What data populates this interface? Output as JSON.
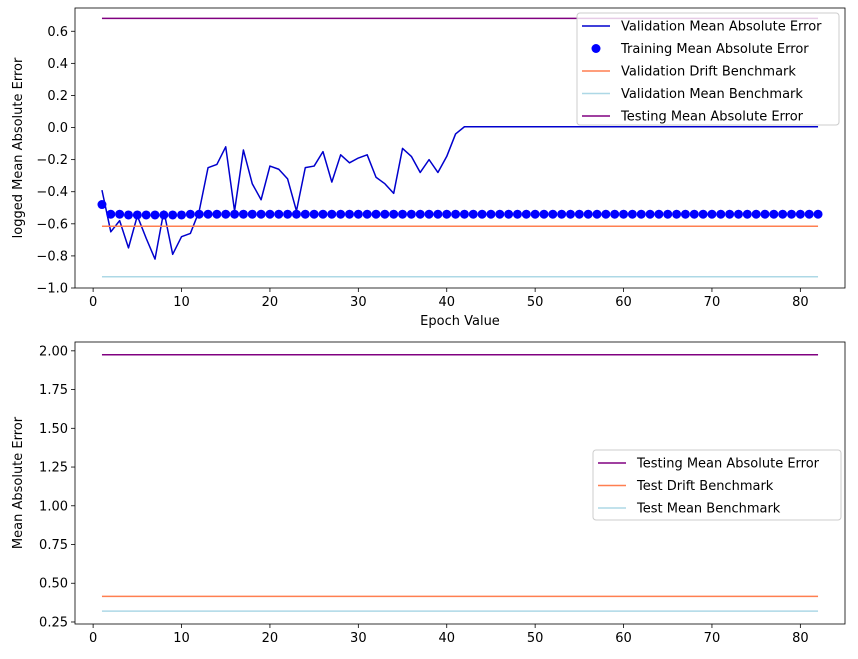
{
  "chart_data": [
    {
      "type": "line",
      "title": "",
      "xlabel": "Epoch Value",
      "ylabel": "logged Mean Absolute Error",
      "xlim": [
        -2.05,
        85.05
      ],
      "ylim": [
        -1.0,
        0.745
      ],
      "xticks": [
        0,
        10,
        20,
        30,
        40,
        50,
        60,
        70,
        80
      ],
      "yticks": [
        -1.0,
        -0.8,
        -0.6,
        -0.4,
        -0.2,
        0.0,
        0.2,
        0.4,
        0.6
      ],
      "ytick_labels": [
        "−1.0",
        "−0.8",
        "−0.6",
        "−0.4",
        "−0.2",
        "0.0",
        "0.2",
        "0.4",
        "0.6"
      ],
      "grid": false,
      "legend_position": "upper-right",
      "series": [
        {
          "name": "Validation Mean Absolute Error",
          "kind": "line",
          "color": "#0000cd",
          "x_start": 1,
          "values": [
            -0.39,
            -0.65,
            -0.58,
            -0.75,
            -0.55,
            -0.69,
            -0.82,
            -0.52,
            -0.79,
            -0.68,
            -0.66,
            -0.52,
            -0.25,
            -0.23,
            -0.12,
            -0.52,
            -0.14,
            -0.35,
            -0.45,
            -0.24,
            -0.26,
            -0.32,
            -0.52,
            -0.25,
            -0.24,
            -0.15,
            -0.34,
            -0.17,
            -0.22,
            -0.19,
            -0.17,
            -0.31,
            -0.35,
            -0.41,
            -0.13,
            -0.18,
            -0.28,
            -0.2,
            -0.28,
            -0.18,
            -0.04,
            0.005,
            0.005,
            0.005,
            0.005,
            0.005,
            0.005,
            0.005,
            0.005,
            0.005,
            0.005,
            0.005,
            0.005,
            0.005,
            0.005,
            0.005,
            0.005,
            0.005,
            0.005,
            0.005,
            0.005,
            0.005,
            0.005,
            0.005,
            0.005,
            0.005,
            0.005,
            0.005,
            0.005,
            0.005,
            0.005,
            0.005,
            0.005,
            0.005,
            0.005,
            0.005,
            0.005,
            0.005,
            0.005,
            0.005,
            0.005,
            0.005
          ]
        },
        {
          "name": "Training Mean Absolute Error",
          "kind": "scatter",
          "color": "#0000ff",
          "x_start": 1,
          "values": [
            -0.48,
            -0.54,
            -0.54,
            -0.545,
            -0.545,
            -0.545,
            -0.545,
            -0.545,
            -0.545,
            -0.545,
            -0.54,
            -0.54,
            -0.54,
            -0.54,
            -0.54,
            -0.54,
            -0.54,
            -0.54,
            -0.54,
            -0.54,
            -0.54,
            -0.54,
            -0.54,
            -0.54,
            -0.54,
            -0.54,
            -0.54,
            -0.54,
            -0.54,
            -0.54,
            -0.54,
            -0.54,
            -0.54,
            -0.54,
            -0.54,
            -0.54,
            -0.54,
            -0.54,
            -0.54,
            -0.54,
            -0.54,
            -0.54,
            -0.54,
            -0.54,
            -0.54,
            -0.54,
            -0.54,
            -0.54,
            -0.54,
            -0.54,
            -0.54,
            -0.54,
            -0.54,
            -0.54,
            -0.54,
            -0.54,
            -0.54,
            -0.54,
            -0.54,
            -0.54,
            -0.54,
            -0.54,
            -0.54,
            -0.54,
            -0.54,
            -0.54,
            -0.54,
            -0.54,
            -0.54,
            -0.54,
            -0.54,
            -0.54,
            -0.54,
            -0.54,
            -0.54,
            -0.54,
            -0.54,
            -0.54,
            -0.54,
            -0.54,
            -0.54,
            -0.54
          ]
        },
        {
          "name": "Validation Drift Benchmark",
          "kind": "hline",
          "color": "#ff7f50",
          "x": [
            1,
            82
          ],
          "value": -0.615
        },
        {
          "name": "Validation Mean Benchmark",
          "kind": "hline",
          "color": "#add8e6",
          "x": [
            1,
            82
          ],
          "value": -0.93
        },
        {
          "name": "Testing Mean Absolute Error",
          "kind": "hline",
          "color": "#800080",
          "x": [
            1,
            82
          ],
          "value": 0.68
        }
      ]
    },
    {
      "type": "line",
      "title": "",
      "xlabel": "",
      "ylabel": "Mean Absolute Error",
      "xlim": [
        -2.05,
        85.05
      ],
      "ylim": [
        0.237,
        2.057
      ],
      "xticks": [
        0,
        10,
        20,
        30,
        40,
        50,
        60,
        70,
        80
      ],
      "yticks": [
        0.25,
        0.5,
        0.75,
        1.0,
        1.25,
        1.5,
        1.75,
        2.0
      ],
      "ytick_labels": [
        "0.25",
        "0.50",
        "0.75",
        "1.00",
        "1.25",
        "1.50",
        "1.75",
        "2.00"
      ],
      "grid": false,
      "legend_position": "center-right",
      "series": [
        {
          "name": "Testing Mean Absolute Error",
          "kind": "hline",
          "color": "#800080",
          "x": [
            1,
            82
          ],
          "value": 1.975
        },
        {
          "name": "Test Drift Benchmark",
          "kind": "hline",
          "color": "#ff7f50",
          "x": [
            1,
            82
          ],
          "value": 0.415
        },
        {
          "name": "Test Mean Benchmark",
          "kind": "hline",
          "color": "#add8e6",
          "x": [
            1,
            82
          ],
          "value": 0.32
        }
      ]
    }
  ]
}
